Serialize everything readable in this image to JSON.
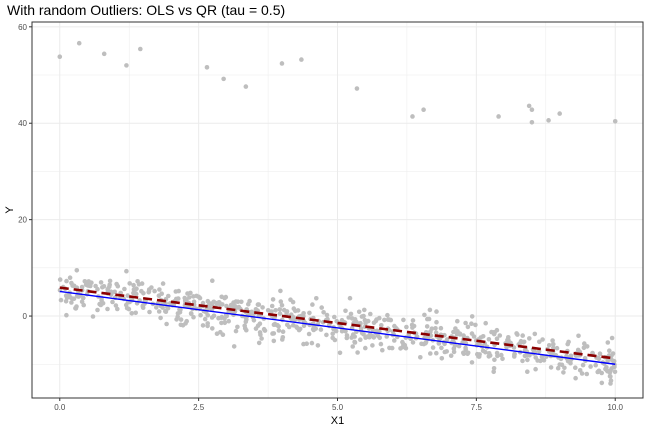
{
  "chart_data": {
    "type": "scatter",
    "title": "With random Outliers: OLS vs QR (tau = 0.5)",
    "xlabel": "X1",
    "ylabel": "Y",
    "xlim": [
      -0.5,
      10.5
    ],
    "ylim": [
      -17,
      61
    ],
    "xticks": [
      0,
      2.5,
      5,
      7.5,
      10
    ],
    "xtick_labels": [
      "0.0",
      "2.5",
      "5.0",
      "7.5",
      "10.0"
    ],
    "yticks": [
      0,
      20,
      40,
      60
    ],
    "ytick_labels": [
      "0",
      "20",
      "40",
      "60"
    ],
    "grid": true,
    "legend": "none",
    "colors": {
      "points": "#bebebe",
      "ols_line": "#8b0000",
      "qr_line": "#0000ff",
      "panel_border": "#333333",
      "grid": "#ebebeb"
    },
    "series": [
      {
        "type": "line",
        "style": "dashed",
        "color": "#8b0000",
        "x": [
          0,
          10
        ],
        "y": [
          5.9,
          -8.8
        ]
      },
      {
        "type": "line",
        "style": "solid",
        "color": "#0000ff",
        "x": [
          0,
          10
        ],
        "y": [
          5.1,
          -10.0
        ]
      }
    ],
    "outliers": {
      "x": [
        0.0,
        0.35,
        0.8,
        1.2,
        1.45,
        2.65,
        2.95,
        3.35,
        4.0,
        4.35,
        5.35,
        6.35,
        6.55,
        7.9,
        8.45,
        8.5,
        8.5,
        8.8,
        9.0,
        10.0
      ],
      "y": [
        53.8,
        56.6,
        54.4,
        52.0,
        55.4,
        51.6,
        49.2,
        47.6,
        52.4,
        53.2,
        47.2,
        41.4,
        42.8,
        41.4,
        43.6,
        42.8,
        40.2,
        40.6,
        42.0,
        40.4
      ]
    },
    "bulk_points": {
      "count": 750,
      "x_range": [
        0,
        10
      ],
      "trend": {
        "intercept": 5.5,
        "slope": -1.5
      },
      "spread_sd": 2.2
    }
  }
}
